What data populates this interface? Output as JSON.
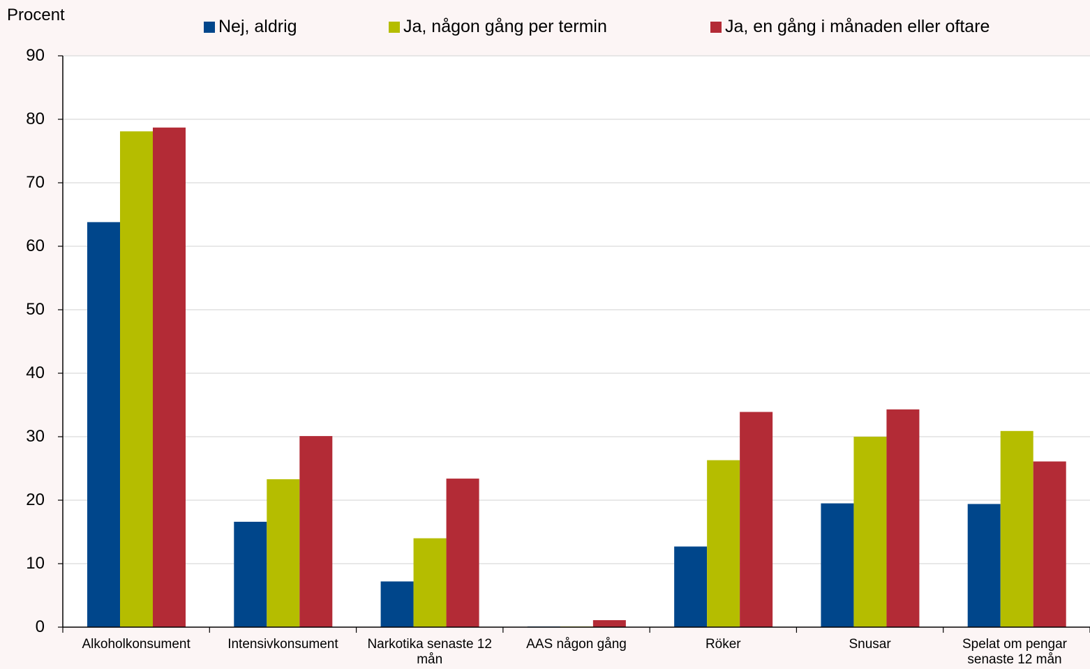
{
  "chart_data": {
    "type": "bar",
    "ylabel": "Procent",
    "ylim": [
      0,
      90
    ],
    "yticks": [
      0,
      10,
      20,
      30,
      40,
      50,
      60,
      70,
      80,
      90
    ],
    "grid": true,
    "legend_position": "top",
    "categories": [
      "Alkoholkonsument",
      "Intensivkonsument",
      "Narkotika senaste 12 mån",
      "AAS någon gång",
      "Röker",
      "Snusar",
      "Spelat om pengar senaste 12 mån"
    ],
    "series": [
      {
        "name": "Nej, aldrig",
        "color": "#00468b",
        "values": [
          63.8,
          16.6,
          7.2,
          0.1,
          12.7,
          19.5,
          19.4
        ]
      },
      {
        "name": "Ja, någon gång per termin",
        "color": "#b5bd00",
        "values": [
          78.1,
          23.3,
          14.0,
          0.1,
          26.3,
          30.0,
          30.9
        ]
      },
      {
        "name": "Ja, en gång i månaden eller oftare",
        "color": "#b32b36",
        "values": [
          78.7,
          30.1,
          23.4,
          1.1,
          33.9,
          34.3,
          26.1
        ]
      }
    ]
  }
}
